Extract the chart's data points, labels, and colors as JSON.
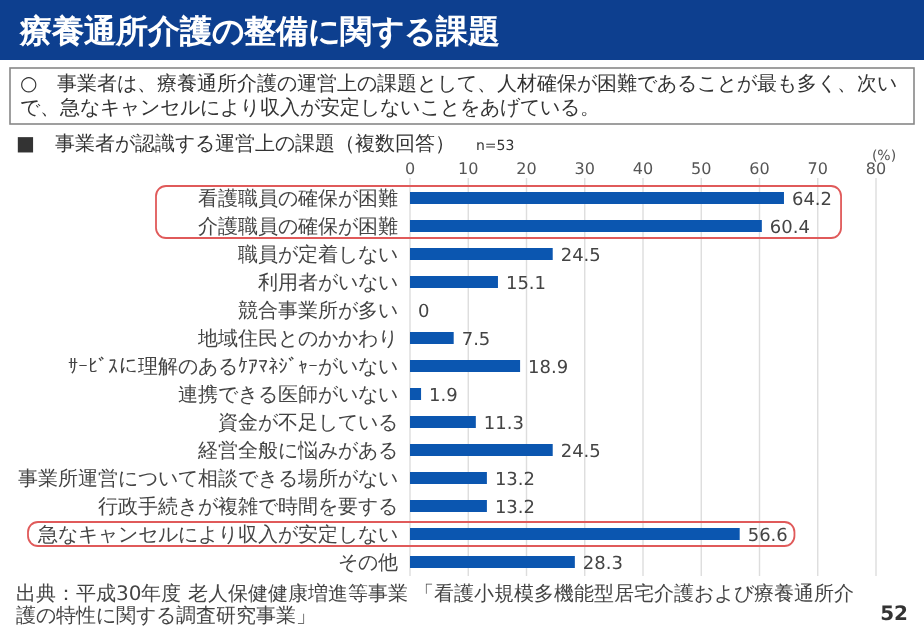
{
  "chart_data": {
    "type": "bar",
    "orientation": "horizontal",
    "title": "療養通所介護の整備に関する課題",
    "subtitle": "○　事業者は、療養通所介護の運営上の課題として、人材確保が困難であることが最も多く、次いで、急なキャンセルにより収入が安定しないことをあげている。",
    "xlabel": "(%)",
    "annotations": [
      "■　事業者が認識する運営上の課題（複数回答）",
      "n=53",
      "出典：平成30年度 老人保健健康増進等事業 「看護小規模多機能型居宅介護および療養通所介護の特性に関する調査研究事業」",
      "52"
    ],
    "categories": [
      "看護職員の確保が困難",
      "介護職員の確保が困難",
      "職員が定着しない",
      "利用者がいない",
      "競合事業所が多い",
      "地域住民とのかかわり",
      "ｻｰﾋﾞｽに理解のあるｹｱﾏﾈｼﾞｬｰがいない",
      "連携できる医師がいない",
      "資金が不足している",
      "経営全般に悩みがある",
      "事業所運営について相談できる場所がない",
      "行政手続きが複雑で時間を要する",
      "急なキャンセルにより収入が安定しない",
      "その他"
    ],
    "values": [
      64.2,
      60.4,
      24.5,
      15.1,
      0,
      7.5,
      18.9,
      1.9,
      11.3,
      24.5,
      13.2,
      13.2,
      56.6,
      28.3
    ],
    "color": "#0b56b0",
    "xlim": [
      0,
      80
    ],
    "xticks": [
      0,
      10,
      20,
      30,
      40,
      50,
      60,
      70,
      80
    ],
    "grid": "x",
    "data_labels": true
  }
}
